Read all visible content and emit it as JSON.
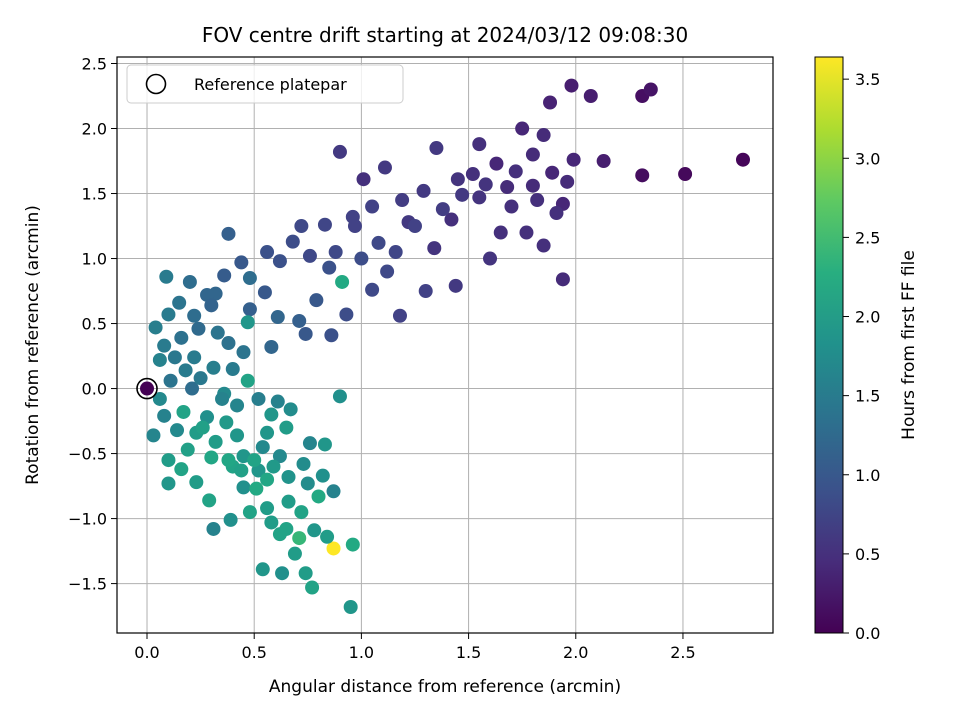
{
  "chart_data": {
    "type": "scatter",
    "title": "FOV centre drift starting at 2024/03/12 09:08:30",
    "xlabel": "Angular distance from reference (arcmin)",
    "ylabel": "Rotation from reference (arcmin)",
    "xlim": [
      -0.14,
      2.92
    ],
    "ylim": [
      -1.88,
      2.55
    ],
    "xticks": [
      0.0,
      0.5,
      1.0,
      1.5,
      2.0,
      2.5
    ],
    "xtick_labels": [
      "0.0",
      "0.5",
      "1.0",
      "1.5",
      "2.0",
      "2.5"
    ],
    "yticks": [
      -1.5,
      -1.0,
      -0.5,
      0.0,
      0.5,
      1.0,
      1.5,
      2.0,
      2.5
    ],
    "ytick_labels": [
      "−1.5",
      "−1.0",
      "−0.5",
      "0.0",
      "0.5",
      "1.0",
      "1.5",
      "2.0",
      "2.5"
    ],
    "grid": true,
    "legend": {
      "placement": "top-left",
      "entries": [
        "Reference platepar"
      ]
    },
    "colorbar": {
      "label": "Hours from first FF file",
      "colormap": "viridis",
      "range": [
        0.0,
        3.64
      ],
      "ticks": [
        0.0,
        0.5,
        1.0,
        1.5,
        2.0,
        2.5,
        3.0,
        3.5
      ],
      "tick_labels": [
        "0.0",
        "0.5",
        "1.0",
        "1.5",
        "2.0",
        "2.5",
        "3.0",
        "3.5"
      ]
    },
    "reference_point": {
      "x": 0.0,
      "y": 0.0
    },
    "points": [
      [
        0.0,
        0.0,
        0.0
      ],
      [
        2.78,
        1.76,
        0.05
      ],
      [
        2.51,
        1.65,
        0.08
      ],
      [
        2.31,
        1.64,
        0.12
      ],
      [
        2.31,
        2.25,
        0.15
      ],
      [
        2.35,
        2.3,
        0.2
      ],
      [
        2.13,
        1.75,
        0.3
      ],
      [
        1.98,
        2.33,
        0.3
      ],
      [
        2.07,
        2.25,
        0.3
      ],
      [
        1.88,
        2.2,
        0.35
      ],
      [
        1.94,
        1.42,
        0.4
      ],
      [
        1.99,
        1.76,
        0.4
      ],
      [
        1.94,
        0.84,
        0.45
      ],
      [
        1.85,
        1.95,
        0.45
      ],
      [
        1.75,
        2.0,
        0.4
      ],
      [
        1.63,
        1.73,
        0.4
      ],
      [
        1.68,
        1.55,
        0.45
      ],
      [
        1.52,
        1.65,
        0.5
      ],
      [
        1.55,
        1.88,
        0.5
      ],
      [
        1.42,
        1.3,
        0.5
      ],
      [
        1.34,
        1.08,
        0.55
      ],
      [
        1.22,
        1.28,
        0.6
      ],
      [
        1.11,
        1.7,
        0.6
      ],
      [
        1.01,
        1.61,
        0.5
      ],
      [
        0.9,
        1.82,
        0.6
      ],
      [
        0.97,
        1.25,
        0.7
      ],
      [
        0.88,
        1.05,
        0.8
      ],
      [
        0.76,
        1.02,
        0.8
      ],
      [
        0.62,
        0.98,
        0.9
      ],
      [
        0.55,
        0.74,
        1.0
      ],
      [
        0.48,
        0.61,
        1.1
      ],
      [
        0.38,
        1.19,
        1.1
      ],
      [
        0.32,
        0.73,
        1.2
      ],
      [
        0.22,
        0.56,
        1.3
      ],
      [
        0.15,
        0.66,
        1.4
      ],
      [
        0.1,
        0.57,
        1.5
      ],
      [
        0.04,
        0.47,
        1.55
      ],
      [
        0.06,
        0.22,
        1.6
      ],
      [
        0.09,
        0.86,
        1.5
      ],
      [
        0.2,
        0.82,
        1.3
      ],
      [
        0.28,
        0.72,
        1.2
      ],
      [
        0.33,
        0.43,
        1.4
      ],
      [
        0.38,
        0.35,
        1.35
      ],
      [
        0.45,
        0.28,
        1.4
      ],
      [
        0.58,
        0.32,
        1.2
      ],
      [
        0.74,
        0.42,
        1.0
      ],
      [
        0.86,
        0.41,
        0.9
      ],
      [
        0.93,
        0.57,
        0.85
      ],
      [
        1.05,
        0.76,
        0.8
      ],
      [
        1.12,
        0.9,
        0.8
      ],
      [
        1.18,
        0.56,
        0.7
      ],
      [
        1.3,
        0.75,
        0.7
      ],
      [
        1.44,
        0.79,
        0.6
      ],
      [
        1.6,
        1.0,
        0.55
      ],
      [
        1.7,
        1.4,
        0.5
      ],
      [
        1.8,
        1.56,
        0.45
      ],
      [
        1.77,
        1.2,
        0.5
      ],
      [
        1.65,
        1.2,
        0.5
      ],
      [
        0.91,
        0.82,
        2.2
      ],
      [
        0.06,
        -0.08,
        1.7
      ],
      [
        0.03,
        -0.36,
        1.65
      ],
      [
        0.1,
        -0.55,
        2.0
      ],
      [
        0.1,
        -0.73,
        1.9
      ],
      [
        0.16,
        -0.62,
        2.1
      ],
      [
        0.23,
        -0.72,
        2.0
      ],
      [
        0.29,
        -0.86,
        2.1
      ],
      [
        0.31,
        -1.08,
        1.6
      ],
      [
        0.39,
        -1.01,
        1.8
      ],
      [
        0.45,
        -0.76,
        1.8
      ],
      [
        0.52,
        -0.63,
        1.9
      ],
      [
        0.56,
        -0.92,
        2.0
      ],
      [
        0.62,
        -1.12,
        2.1
      ],
      [
        0.69,
        -1.27,
        2.0
      ],
      [
        0.74,
        -1.42,
        2.0
      ],
      [
        0.77,
        -1.53,
        2.1
      ],
      [
        0.95,
        -1.68,
        1.9
      ],
      [
        0.96,
        -1.2,
        2.2
      ],
      [
        0.87,
        -1.23,
        3.64
      ],
      [
        0.71,
        -1.15,
        2.4
      ],
      [
        0.63,
        -1.42,
        1.8
      ],
      [
        0.54,
        -1.39,
        1.9
      ],
      [
        0.8,
        -0.83,
        2.2
      ],
      [
        0.9,
        -0.06,
        1.8
      ],
      [
        0.83,
        -0.43,
        1.9
      ],
      [
        0.82,
        -0.67,
        1.8
      ],
      [
        0.65,
        -0.3,
        2.0
      ],
      [
        0.58,
        -0.2,
        1.9
      ],
      [
        0.47,
        0.06,
        2.1
      ],
      [
        0.36,
        -0.04,
        1.7
      ],
      [
        0.28,
        -0.22,
        1.8
      ],
      [
        0.17,
        -0.18,
        2.1
      ],
      [
        0.23,
        -0.34,
        2.0
      ],
      [
        0.32,
        -0.41,
        2.0
      ],
      [
        0.45,
        -0.52,
        1.9
      ],
      [
        0.4,
        -0.6,
        2.1
      ],
      [
        0.51,
        -0.77,
        2.2
      ],
      [
        0.66,
        -0.87,
        2.0
      ],
      [
        0.72,
        -0.95,
        2.1
      ],
      [
        0.78,
        -1.09,
        1.9
      ],
      [
        0.84,
        -1.14,
        2.0
      ],
      [
        0.62,
        -0.52,
        1.7
      ],
      [
        0.56,
        -0.34,
        1.9
      ],
      [
        0.21,
        0.0,
        1.3
      ],
      [
        0.11,
        0.06,
        1.4
      ],
      [
        0.22,
        0.24,
        1.5
      ],
      [
        0.4,
        0.15,
        1.5
      ],
      [
        0.47,
        0.51,
        1.9
      ],
      [
        0.48,
        0.85,
        1.3
      ],
      [
        0.61,
        0.55,
        1.2
      ],
      [
        0.71,
        0.52,
        1.1
      ],
      [
        0.79,
        0.68,
        1.0
      ],
      [
        0.85,
        0.93,
        0.9
      ],
      [
        1.0,
        1.0,
        0.85
      ],
      [
        1.08,
        1.12,
        0.8
      ],
      [
        1.16,
        1.05,
        0.75
      ],
      [
        1.25,
        1.25,
        0.7
      ],
      [
        1.38,
        1.38,
        0.65
      ],
      [
        1.47,
        1.49,
        0.6
      ],
      [
        1.58,
        1.57,
        0.55
      ],
      [
        1.72,
        1.67,
        0.5
      ],
      [
        1.8,
        1.8,
        0.45
      ],
      [
        1.89,
        1.66,
        0.4
      ],
      [
        1.96,
        1.59,
        0.45
      ],
      [
        1.82,
        1.45,
        0.5
      ],
      [
        1.91,
        1.35,
        0.5
      ],
      [
        1.85,
        1.1,
        0.5
      ],
      [
        1.55,
        1.47,
        0.55
      ],
      [
        1.45,
        1.61,
        0.55
      ],
      [
        1.35,
        1.85,
        0.6
      ],
      [
        1.29,
        1.52,
        0.6
      ],
      [
        1.19,
        1.45,
        0.65
      ],
      [
        1.05,
        1.4,
        0.7
      ],
      [
        0.96,
        1.32,
        0.7
      ],
      [
        0.83,
        1.26,
        0.75
      ],
      [
        0.72,
        1.25,
        0.8
      ],
      [
        0.68,
        1.13,
        0.85
      ],
      [
        0.56,
        1.05,
        0.9
      ],
      [
        0.44,
        0.97,
        1.0
      ],
      [
        0.36,
        0.87,
        1.05
      ],
      [
        0.3,
        0.64,
        1.15
      ],
      [
        0.24,
        0.46,
        1.25
      ],
      [
        0.16,
        0.39,
        1.35
      ],
      [
        0.08,
        0.33,
        1.5
      ],
      [
        0.13,
        0.24,
        1.45
      ],
      [
        0.18,
        0.14,
        1.5
      ],
      [
        0.25,
        0.08,
        1.45
      ],
      [
        0.31,
        0.16,
        1.55
      ],
      [
        0.35,
        -0.08,
        1.6
      ],
      [
        0.42,
        -0.13,
        1.65
      ],
      [
        0.52,
        -0.08,
        1.55
      ],
      [
        0.61,
        -0.1,
        1.6
      ],
      [
        0.54,
        -0.45,
        1.7
      ],
      [
        0.73,
        -0.58,
        1.75
      ],
      [
        0.66,
        -0.68,
        1.85
      ],
      [
        0.59,
        -0.6,
        1.95
      ],
      [
        0.42,
        -0.36,
        1.9
      ],
      [
        0.37,
        -0.26,
        1.95
      ],
      [
        0.26,
        -0.3,
        2.05
      ],
      [
        0.19,
        -0.47,
        2.05
      ],
      [
        0.3,
        -0.53,
        2.15
      ],
      [
        0.38,
        -0.55,
        2.15
      ],
      [
        0.44,
        -0.63,
        2.05
      ],
      [
        0.5,
        -0.55,
        2.1
      ],
      [
        0.56,
        -0.7,
        2.15
      ],
      [
        0.48,
        -0.95,
        2.1
      ],
      [
        0.58,
        -1.03,
        2.0
      ],
      [
        0.65,
        -1.08,
        2.1
      ],
      [
        0.75,
        -0.73,
        1.75
      ],
      [
        0.87,
        -0.79,
        1.6
      ],
      [
        0.67,
        -0.16,
        1.75
      ],
      [
        0.76,
        -0.42,
        1.65
      ],
      [
        0.14,
        -0.32,
        1.7
      ],
      [
        0.08,
        -0.21,
        1.6
      ]
    ]
  }
}
